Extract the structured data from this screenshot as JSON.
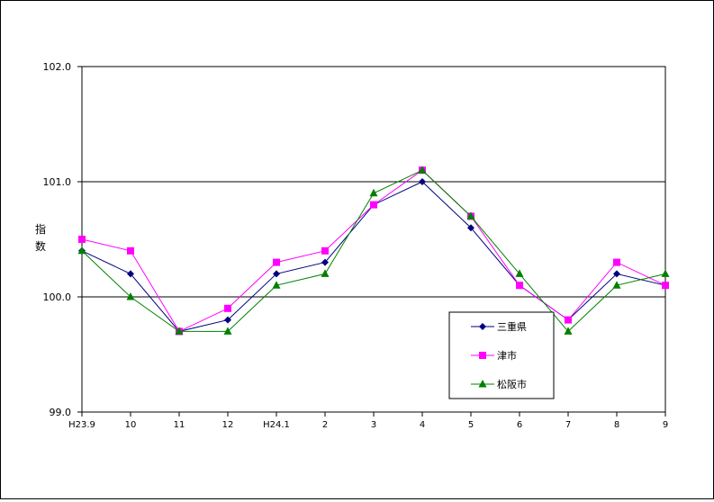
{
  "chart_data": {
    "type": "line",
    "ylabel": "指数",
    "ylim": [
      99.0,
      102.0
    ],
    "yticks": [
      "99.0",
      "100.0",
      "101.0",
      "102.0"
    ],
    "grid": true,
    "legend_position": "bottom-right",
    "categories": [
      "H23.9",
      "10",
      "11",
      "12",
      "H24.1",
      "2",
      "3",
      "4",
      "5",
      "6",
      "7",
      "8",
      "9"
    ],
    "series": [
      {
        "name": "三重県",
        "color": "#000080",
        "marker": "diamond",
        "values": [
          100.4,
          100.2,
          99.7,
          99.8,
          100.2,
          100.3,
          100.8,
          101.0,
          100.6,
          100.1,
          99.8,
          100.2,
          100.1
        ]
      },
      {
        "name": "津市",
        "color": "#FF00FF",
        "marker": "square",
        "values": [
          100.5,
          100.4,
          99.7,
          99.9,
          100.3,
          100.4,
          100.8,
          101.1,
          100.7,
          100.1,
          99.8,
          100.3,
          100.1
        ]
      },
      {
        "name": "松阪市",
        "color": "#008000",
        "marker": "triangle",
        "values": [
          100.4,
          100.0,
          99.7,
          99.7,
          100.1,
          100.2,
          100.9,
          101.1,
          100.7,
          100.2,
          99.7,
          100.1,
          100.2
        ]
      }
    ]
  }
}
